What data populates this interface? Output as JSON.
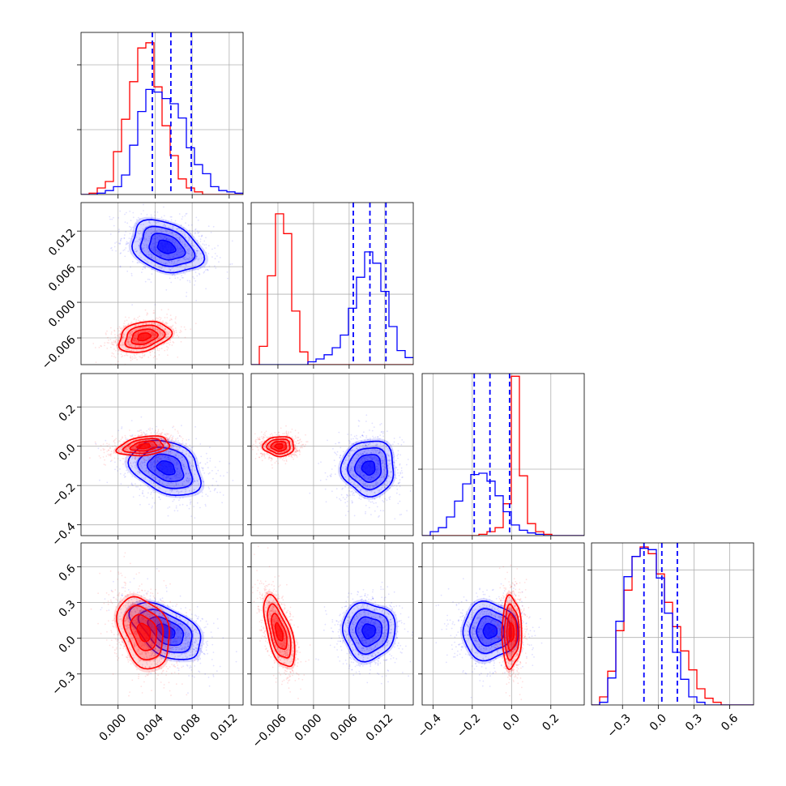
{
  "chart_data": {
    "type": "corner",
    "grid": true,
    "series": [
      {
        "color": "#ff0000"
      },
      {
        "color": "#0000ff"
      }
    ],
    "quantile_color": "#0000ff",
    "params": [
      {
        "lim": [
          -0.004,
          0.0135
        ],
        "ticks": [
          0.0,
          0.004,
          0.008,
          0.012
        ],
        "tick_labels": [
          "0.000",
          "0.004",
          "0.008",
          "0.012"
        ]
      },
      {
        "lim": [
          -0.0105,
          0.0168
        ],
        "ticks": [
          -0.006,
          0.0,
          0.006,
          0.012
        ],
        "tick_labels": [
          "−0.006",
          "0.000",
          "0.006",
          "0.012"
        ]
      },
      {
        "lim": [
          -0.455,
          0.37
        ],
        "ticks": [
          -0.4,
          -0.2,
          0.0,
          0.2
        ],
        "tick_labels": [
          "−0.4",
          "−0.2",
          "0.0",
          "0.2"
        ]
      },
      {
        "lim": [
          -0.56,
          0.8
        ],
        "ticks": [
          -0.3,
          0.0,
          0.3,
          0.6
        ],
        "tick_labels": [
          "−0.3",
          "0.0",
          "0.3",
          "0.6"
        ]
      }
    ],
    "diag_ymax": [
      1.25,
      1.15,
      1.22,
      1.2
    ],
    "diag_yticks": [
      [
        0.5,
        1.0
      ],
      [
        0.5,
        1.0
      ],
      [
        0.5
      ],
      [
        0.5,
        1.0
      ]
    ],
    "quantiles": [
      [
        0.0037,
        0.0057,
        0.0079
      ],
      [
        0.0067,
        0.0095,
        0.0122
      ],
      [
        -0.19,
        -0.11,
        -0.01
      ],
      [
        -0.12,
        0.03,
        0.16
      ]
    ],
    "hist1d": [
      {
        "red": [
          0.0,
          0.01,
          0.05,
          0.1,
          0.33,
          0.58,
          0.87,
          1.13,
          1.17,
          0.83,
          0.53,
          0.3,
          0.12,
          0.05,
          0.02,
          0.0,
          0.0,
          0.0,
          0.0,
          0.0
        ],
        "blue": [
          0.0,
          0.0,
          0.01,
          0.03,
          0.06,
          0.15,
          0.38,
          0.64,
          0.81,
          0.79,
          0.74,
          0.7,
          0.59,
          0.36,
          0.23,
          0.16,
          0.06,
          0.03,
          0.02,
          0.01
        ]
      },
      {
        "red": [
          0.0,
          0.13,
          0.63,
          1.07,
          0.93,
          0.38,
          0.09,
          0.0,
          0.0,
          0.0,
          0.0,
          0.0,
          0.0,
          0.0,
          0.0,
          0.0,
          0.0,
          0.0,
          0.0,
          0.0
        ],
        "blue": [
          0.0,
          0.0,
          0.0,
          0.0,
          0.0,
          0.0,
          0.0,
          0.02,
          0.04,
          0.07,
          0.12,
          0.21,
          0.4,
          0.62,
          0.8,
          0.72,
          0.52,
          0.27,
          0.1,
          0.05
        ]
      },
      {
        "red": [
          0.0,
          0.0,
          0.0,
          0.0,
          0.0,
          0.0,
          0.0,
          0.01,
          0.03,
          0.06,
          0.24,
          1.2,
          0.45,
          0.09,
          0.03,
          0.01,
          0.0,
          0.0,
          0.0,
          0.0
        ],
        "blue": [
          0.0,
          0.03,
          0.06,
          0.14,
          0.26,
          0.39,
          0.46,
          0.47,
          0.41,
          0.3,
          0.18,
          0.08,
          0.04,
          0.02,
          0.01,
          0.0,
          0.0,
          0.0,
          0.0,
          0.0
        ]
      },
      {
        "red": [
          0.0,
          0.06,
          0.25,
          0.55,
          0.85,
          1.1,
          1.17,
          1.12,
          0.97,
          0.76,
          0.58,
          0.4,
          0.26,
          0.12,
          0.05,
          0.02,
          0.0,
          0.0,
          0.0,
          0.0
        ],
        "blue": [
          0.0,
          0.02,
          0.2,
          0.62,
          0.95,
          1.1,
          1.16,
          1.15,
          0.94,
          0.68,
          0.39,
          0.19,
          0.06,
          0.02,
          0.0,
          0.0,
          0.0,
          0.0,
          0.0,
          0.0
        ]
      }
    ],
    "gaussians": {
      "red": {
        "mean": [
          0.0028,
          -0.0058,
          0.0,
          0.05
        ],
        "std": [
          0.0014,
          0.0013,
          0.025,
          0.15
        ],
        "corr": [
          [
            1,
            0.3,
            0.3,
            -0.3
          ],
          [
            0.3,
            1,
            0,
            -0.6
          ],
          [
            0.3,
            0,
            1,
            0
          ],
          [
            -0.3,
            -0.6,
            0,
            1
          ]
        ]
      },
      "blue": {
        "mean": [
          0.0052,
          0.0093,
          -0.11,
          0.06
        ],
        "std": [
          0.0019,
          0.0022,
          0.07,
          0.12
        ],
        "corr": [
          [
            1,
            -0.3,
            -0.3,
            -0.5
          ],
          [
            -0.3,
            1,
            0,
            0
          ],
          [
            -0.3,
            0,
            1,
            0
          ],
          [
            -0.5,
            0,
            0,
            1
          ]
        ]
      }
    }
  }
}
